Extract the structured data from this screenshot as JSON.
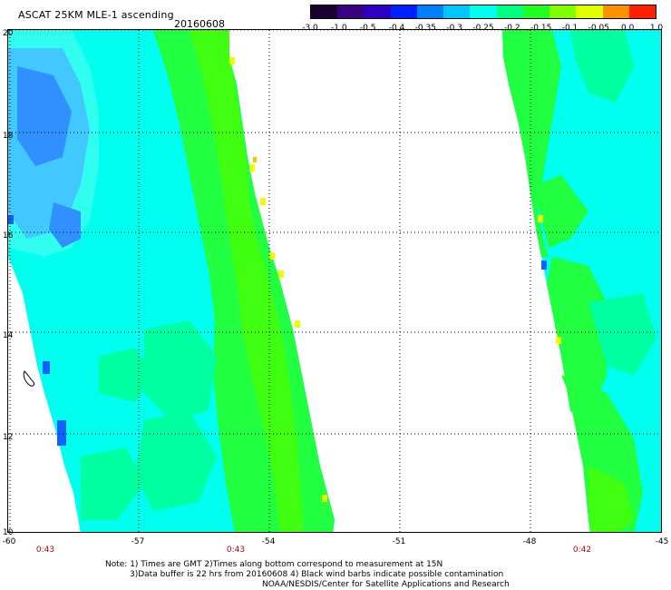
{
  "header": {
    "title": "ASCAT 25KM MLE-1 ascending",
    "date": "20160608"
  },
  "colorbar": {
    "colors": [
      "#1a0030",
      "#3a0080",
      "#3000c0",
      "#0020ff",
      "#0080ff",
      "#00c8ff",
      "#00ffee",
      "#00ff80",
      "#20ff20",
      "#80ff00",
      "#e0ff00",
      "#ff9000",
      "#ff2000"
    ],
    "ticks": [
      "-3.0",
      "-1.0",
      "-0.5",
      "-0.4",
      "-0.35",
      "-0.3",
      "-0.25",
      "-0.2",
      "-0.15",
      "-0.1",
      "-0.05",
      "0.0",
      "1.0"
    ]
  },
  "map": {
    "lat_labels": [
      "20",
      "18",
      "16",
      "14",
      "12",
      "10"
    ],
    "lon_labels": [
      "-60",
      "-57",
      "-54",
      "-51",
      "-48",
      "-45"
    ],
    "time_labels": [
      "0:43",
      "0:43",
      "0:42"
    ],
    "colors": {
      "cyan": "#00ffee",
      "light_cyan": "#30fff0",
      "blue_cyan": "#40c8ff",
      "blue": "#3090ff",
      "deep_blue": "#1060ff",
      "green_cyan": "#00ffa0",
      "green": "#20ff40",
      "bright_green": "#40ff10",
      "yellow": "#e8ff00",
      "orange": "#ffc000"
    }
  },
  "notes": {
    "line1": "Note: 1) Times are GMT 2)Times along bottom correspond to measurement at 15N",
    "line2": "3)Data buffer is 22 hrs from 20160608 4) Black wind barbs indicate possible contamination",
    "line3": "NOAA/NESDIS/Center for Satellite Applications and Research"
  }
}
